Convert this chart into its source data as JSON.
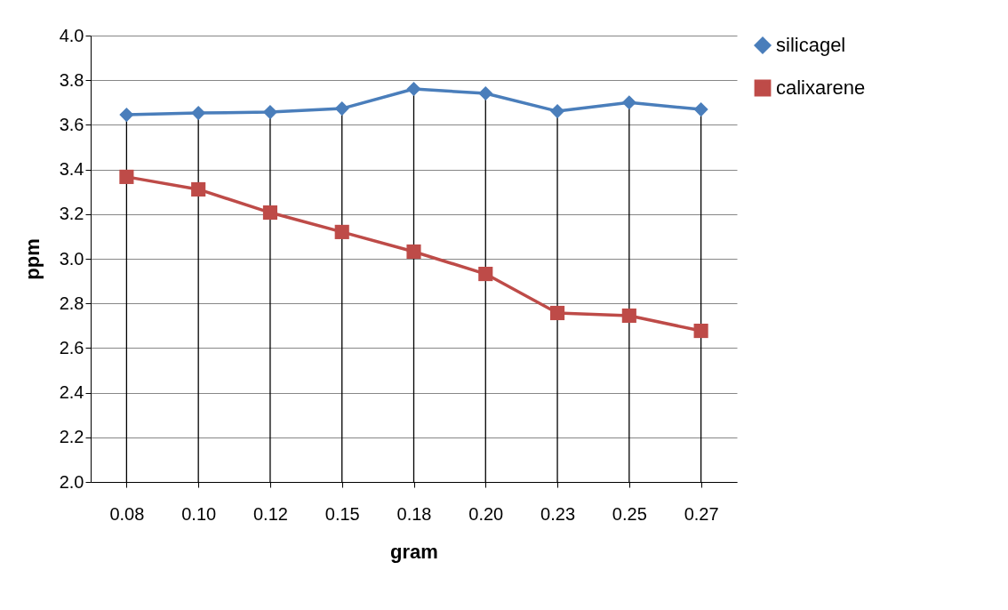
{
  "chart_data": {
    "type": "line",
    "xlabel": "gram",
    "ylabel": "ppm",
    "categories": [
      "0.08",
      "0.10",
      "0.12",
      "0.15",
      "0.18",
      "0.20",
      "0.23",
      "0.25",
      "0.27"
    ],
    "series": [
      {
        "name": "silicagel",
        "color": "#4a7ebb",
        "marker": "diamond",
        "values": [
          3.645,
          3.653,
          3.657,
          3.673,
          3.761,
          3.741,
          3.661,
          3.7,
          3.669
        ]
      },
      {
        "name": "calixarene",
        "color": "#be4b48",
        "marker": "square",
        "values": [
          3.367,
          3.311,
          3.207,
          3.12,
          3.032,
          2.932,
          2.757,
          2.745,
          2.677
        ]
      }
    ],
    "ylim": [
      2.0,
      4.0
    ],
    "yticks": [
      {
        "value": 2.0,
        "label": "2.0"
      },
      {
        "value": 2.2,
        "label": "2.2"
      },
      {
        "value": 2.4,
        "label": "2.4"
      },
      {
        "value": 2.6,
        "label": "2.6"
      },
      {
        "value": 2.8,
        "label": "2.8"
      },
      {
        "value": 3.0,
        "label": "3.0"
      },
      {
        "value": 3.2,
        "label": "3.2"
      },
      {
        "value": 3.4,
        "label": "3.4"
      },
      {
        "value": 3.6,
        "label": "3.6"
      },
      {
        "value": 3.8,
        "label": "3.8"
      },
      {
        "value": 4.0,
        "label": "4.0"
      }
    ],
    "grid": true,
    "legend": "right",
    "line_style": "solid"
  }
}
